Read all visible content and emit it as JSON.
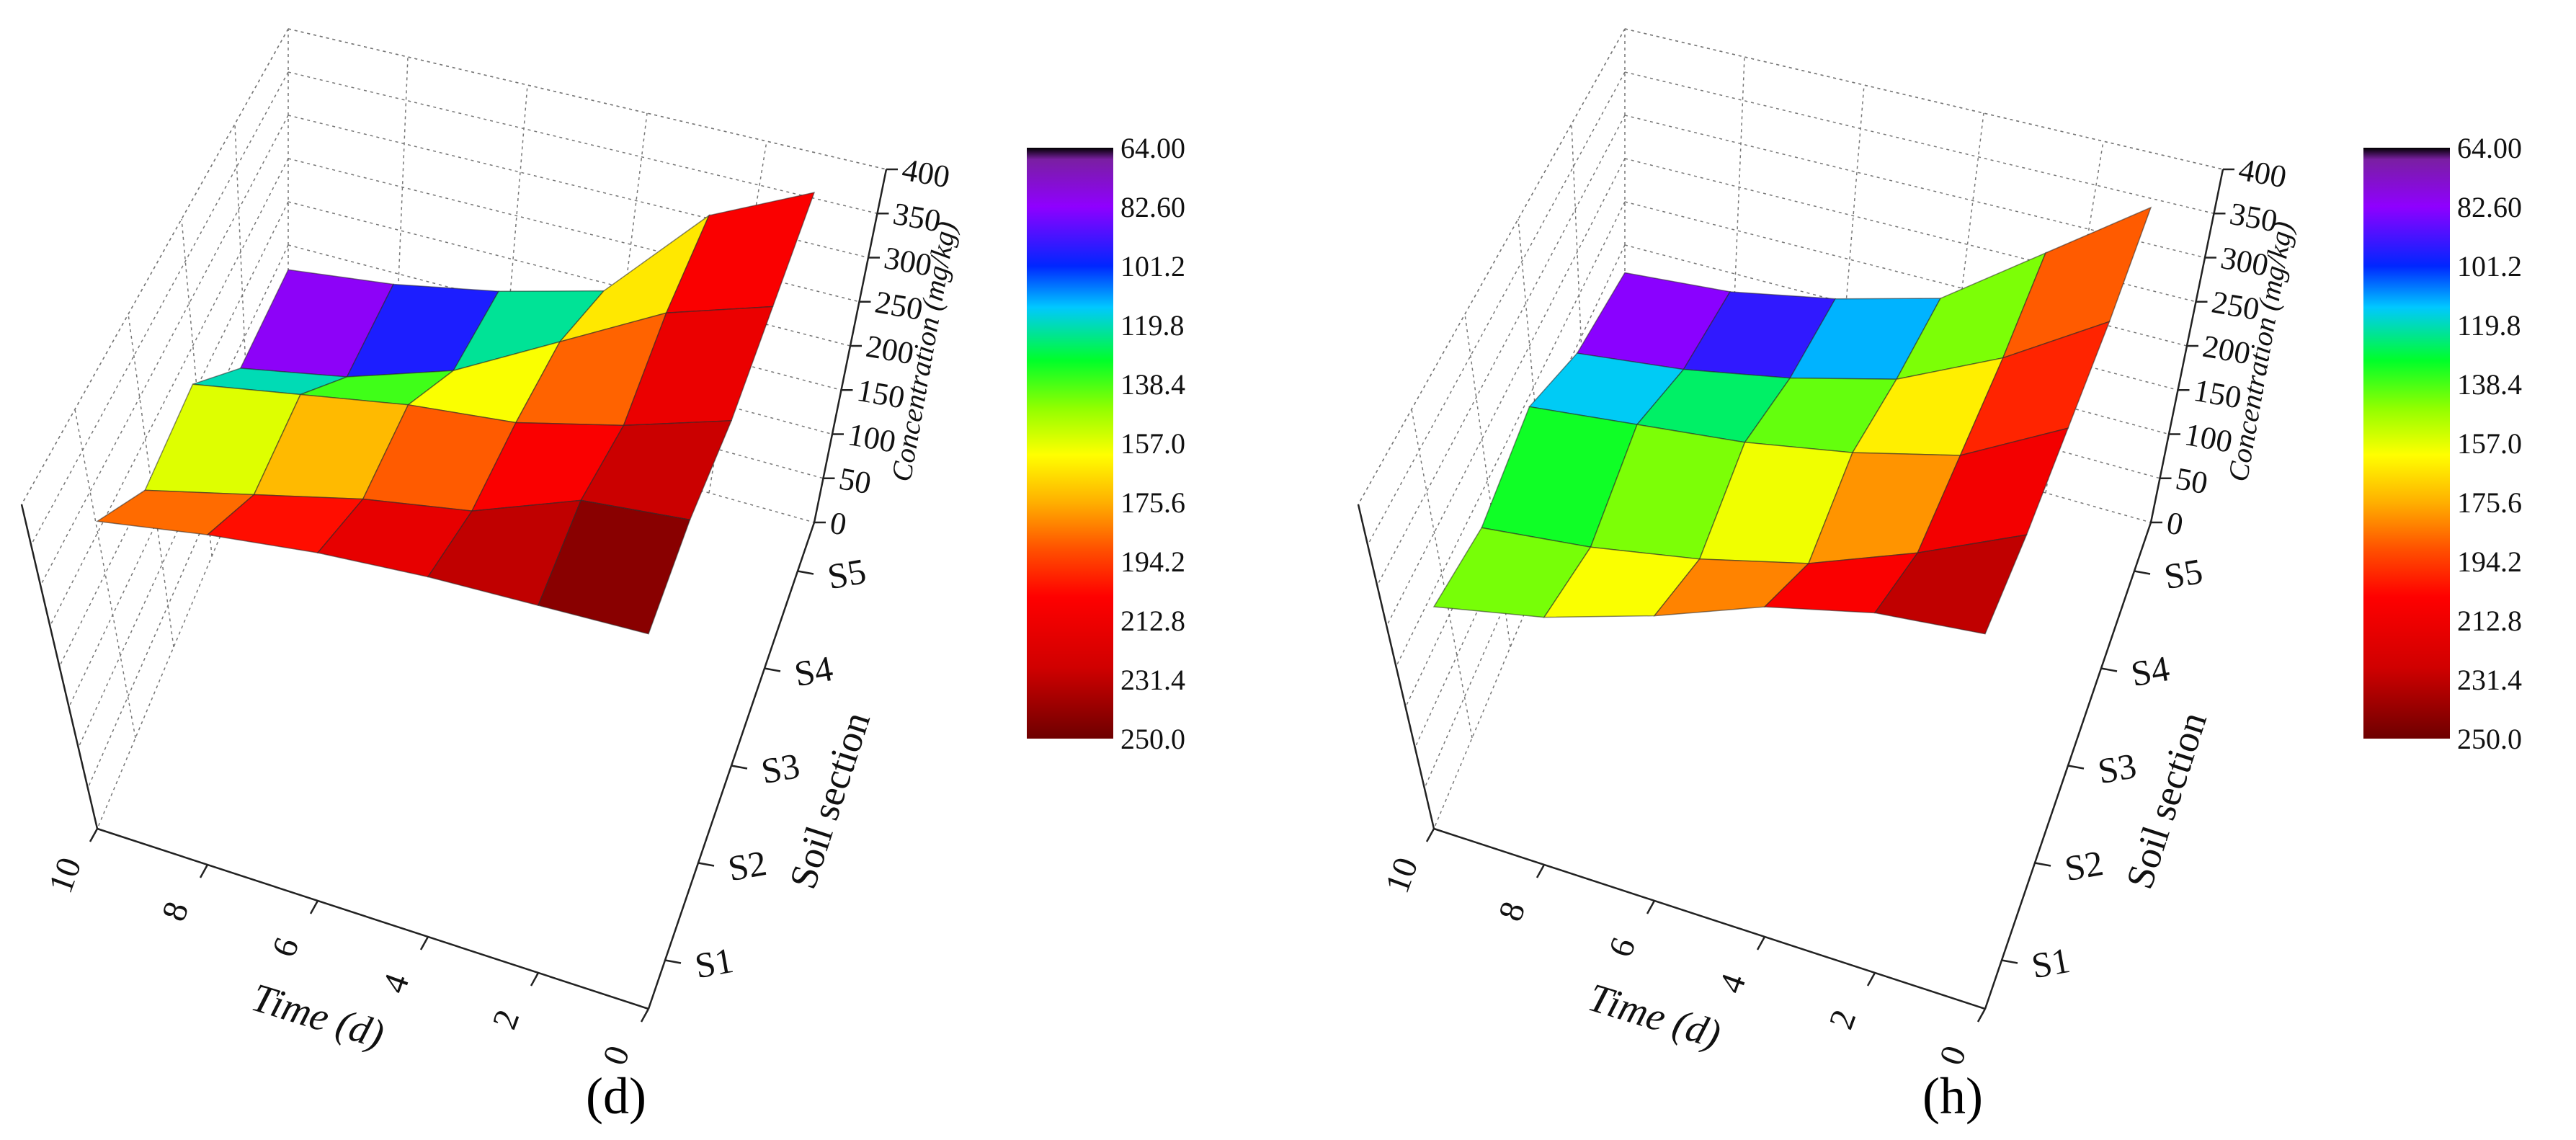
{
  "chart_data": [
    {
      "type": "surface3d",
      "panel_label": "(d)",
      "xlabel": "Time (d)",
      "ylabel": "Soil section",
      "zlabel": "Concentration (mg/kg)",
      "x_ticks": [
        "10",
        "8",
        "6",
        "4",
        "2",
        "0"
      ],
      "y_ticks": [
        "S1",
        "S2",
        "S3",
        "S4",
        "S5"
      ],
      "z_ticks": [
        "0",
        "50",
        "100",
        "150",
        "200",
        "250",
        "300",
        "350",
        "400"
      ],
      "zlim": [
        0,
        400
      ],
      "colorbar": {
        "min": 64.0,
        "max": 250.0,
        "labels": [
          "64.00",
          "82.60",
          "101.2",
          "119.8",
          "138.4",
          "157.0",
          "175.6",
          "194.2",
          "212.8",
          "231.4",
          "250.0"
        ]
      },
      "x": [
        0,
        2,
        4,
        6,
        8,
        10
      ],
      "y": [
        "S1",
        "S2",
        "S3",
        "S4",
        "S5"
      ],
      "z": [
        [
          250,
          245,
          240,
          232,
          220,
          205
        ],
        [
          245,
          235,
          205,
          190,
          170,
          150
        ],
        [
          230,
          205,
          185,
          175,
          160,
          145
        ],
        [
          225,
          200,
          160,
          120,
          95,
          80
        ],
        [
          220,
          185,
          115,
          95,
          80,
          70
        ]
      ]
    },
    {
      "type": "surface3d",
      "panel_label": "(h)",
      "xlabel": "Time (d)",
      "ylabel": "Soil section",
      "zlabel": "Concentration (mg/kg)",
      "x_ticks": [
        "10",
        "8",
        "6",
        "4",
        "2",
        "0"
      ],
      "y_ticks": [
        "S1",
        "S2",
        "S3",
        "S4",
        "S5"
      ],
      "z_ticks": [
        "0",
        "50",
        "100",
        "150",
        "200",
        "250",
        "300",
        "350",
        "400"
      ],
      "zlim": [
        0,
        400
      ],
      "colorbar": {
        "min": 64.0,
        "max": 250.0,
        "labels": [
          "64.00",
          "82.60",
          "101.2",
          "119.8",
          "138.4",
          "157.0",
          "175.6",
          "194.2",
          "212.8",
          "231.4",
          "250.0"
        ]
      },
      "x": [
        0,
        2,
        4,
        6,
        8,
        10
      ],
      "y": [
        "S1",
        "S2",
        "S3",
        "S4",
        "S5"
      ],
      "z": [
        [
          250,
          240,
          220,
          190,
          165,
          148
        ],
        [
          235,
          200,
          170,
          150,
          135,
          125
        ],
        [
          225,
          185,
          165,
          150,
          140,
          130
        ],
        [
          215,
          170,
          135,
          115,
          100,
          90
        ],
        [
          210,
          160,
          110,
          90,
          75,
          68
        ]
      ]
    }
  ]
}
